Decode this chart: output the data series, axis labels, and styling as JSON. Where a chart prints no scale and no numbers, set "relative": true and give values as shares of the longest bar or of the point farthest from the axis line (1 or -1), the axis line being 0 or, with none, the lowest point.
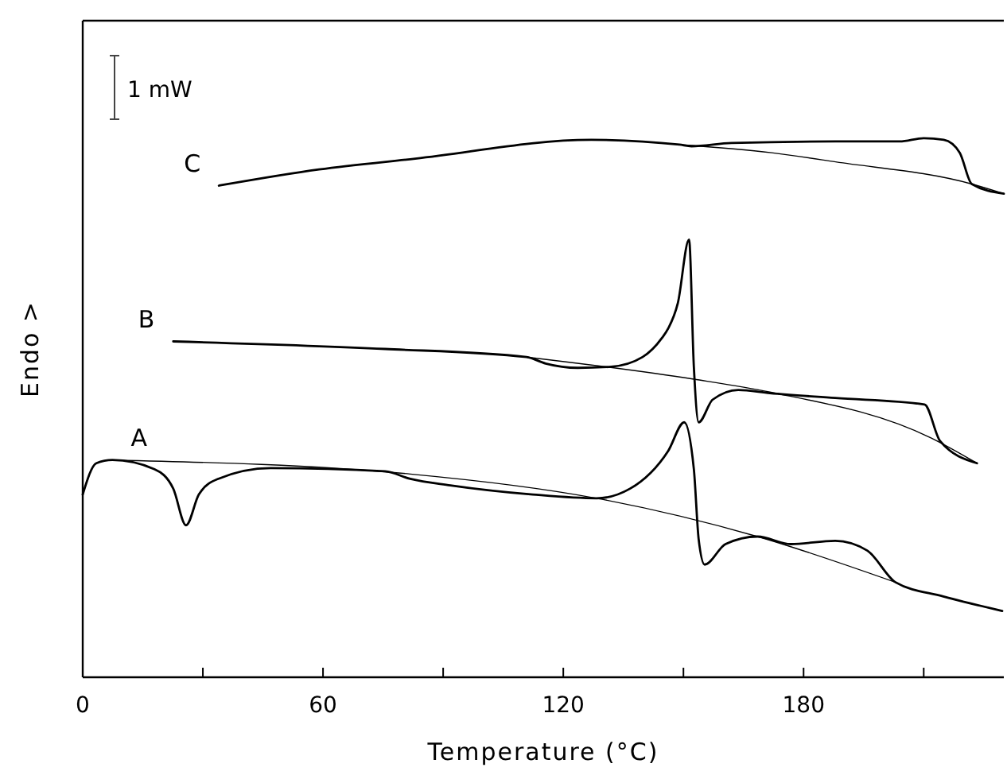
{
  "chart_data": {
    "type": "line",
    "relative": true,
    "xlabel": "Temperature (°C)",
    "ylabel": "Endo >",
    "annotations": [
      "1 mW"
    ],
    "xlim": [
      0,
      230
    ],
    "xticks": [
      0,
      {
        "value": 30,
        "label": null
      },
      60,
      {
        "value": 90,
        "label": null
      },
      120,
      {
        "value": 150,
        "label": null
      },
      180,
      {
        "value": 210,
        "label": null
      }
    ],
    "grid": false,
    "legend": false,
    "marker": "none",
    "line_style": "solid",
    "tick_labels": "x",
    "series": [
      {
        "name": "C",
        "color": "#000000",
        "x": [
          34,
          59,
          83,
          127,
          149,
          152,
          162,
          188,
          204,
          210,
          215,
          219,
          222,
          230
        ],
        "values": [
          0.912,
          0.942,
          0.962,
          0.997,
          0.988,
          0.985,
          0.991,
          0.994,
          0.994,
          1.0,
          0.997,
          0.973,
          0.915,
          0.897
        ]
      },
      {
        "color": "#000000",
        "x": [
          149,
          172,
          188,
          222,
          230
        ],
        "values": [
          0.988,
          0.973,
          0.956,
          0.915,
          0.897
        ]
      },
      {
        "name": "B",
        "color": "#000000",
        "x": [
          22.6,
          75.5,
          110.8,
          115.6,
          123.6,
          131.9,
          139.8,
          144.6,
          146.2,
          148.6,
          151.4,
          152.6,
          153.8,
          157.3,
          163.7,
          171.6,
          187.9,
          210.2,
          214.1,
          223.3
        ],
        "values": [
          0.623,
          0.609,
          0.594,
          0.582,
          0.574,
          0.576,
          0.594,
          0.629,
          0.647,
          0.694,
          0.812,
          0.576,
          0.473,
          0.515,
          0.533,
          0.527,
          0.518,
          0.506,
          0.438,
          0.397
        ]
      },
      {
        "color": "#000000",
        "x": [
          110.8,
          152.6,
          171.6,
          211.8,
          223.3
        ],
        "values": [
          0.594,
          0.553,
          0.529,
          0.444,
          0.397
        ]
      },
      {
        "name": "A",
        "color": "#000000",
        "x": [
          0,
          3.4,
          7.4,
          17.9,
          22.6,
          25.8,
          29,
          33.8,
          46.9,
          75.5,
          81.8,
          91.8,
          112.4,
          128.3,
          136.7,
          146.2,
          150.2,
          152.6,
          153.8,
          155.3,
          160.5,
          168.5,
          176.8,
          187.9,
          195.9,
          203,
          214.9,
          229.6
        ],
        "values": [
          0.339,
          0.397,
          0.403,
          0.386,
          0.35,
          0.282,
          0.339,
          0.368,
          0.388,
          0.382,
          0.368,
          0.356,
          0.339,
          0.332,
          0.35,
          0.42,
          0.473,
          0.386,
          0.256,
          0.209,
          0.247,
          0.261,
          0.247,
          0.253,
          0.235,
          0.176,
          0.15,
          0.123
        ]
      },
      {
        "color": "#000000",
        "x": [
          7.4,
          81.8,
          128.3,
          168.5,
          203
        ],
        "values": [
          0.403,
          0.377,
          0.332,
          0.261,
          0.176
        ]
      }
    ]
  }
}
